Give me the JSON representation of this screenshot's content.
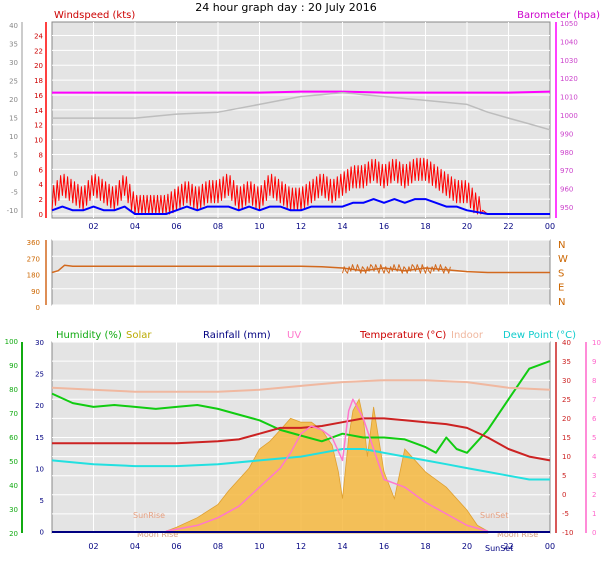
{
  "title": "24 hour graph day : 20 July 2016",
  "colors": {
    "wind": "#ff0000",
    "gust_low": "#0000ff",
    "baro": "#ff00ff",
    "baro_old": "#bdbdbd",
    "dir": "#d2691e",
    "humidity": "#11cc11",
    "solar": "#f5c060",
    "solar_fill": "#f6b93f",
    "rain": "#000080",
    "uv": "#ff77cc",
    "temp": "#cc2222",
    "indoor": "#f0b8a0",
    "dew": "#22e0e0",
    "plot_bg": "#e4e4e4",
    "grid": "#ffffff"
  },
  "chart_data": [
    {
      "type": "line",
      "name": "wind_and_pressure",
      "left_label": "Windspeed (kts)",
      "right_label": "Barometer (hpa)",
      "x_ticks": [
        "02",
        "04",
        "06",
        "08",
        "10",
        "12",
        "14",
        "16",
        "18",
        "20",
        "22",
        "00"
      ],
      "y_left_grey_ticks": [
        "40",
        "35",
        "30",
        "25",
        "20",
        "15",
        "10",
        "5",
        "0",
        "-5",
        "-10"
      ],
      "y_left_ticks": [
        "24",
        "22",
        "20",
        "18",
        "16",
        "14",
        "12",
        "10",
        "8",
        "6",
        "4",
        "2",
        "0"
      ],
      "y_left_lower_ticks": [
        "4",
        "2",
        "0"
      ],
      "y_right_ticks": [
        "1050",
        "1040",
        "1030",
        "1020",
        "1010",
        "1000",
        "990",
        "980",
        "970",
        "960",
        "950"
      ],
      "y_right_grey_ticks": [
        "1050",
        "1040",
        "1030",
        "1020",
        "1010",
        "1000",
        "990",
        "980"
      ],
      "ylim_kts": [
        0,
        25
      ],
      "ylim_hpa": [
        955,
        1050
      ],
      "series": [
        {
          "key": "baro",
          "x": [
            0,
            2,
            4,
            6,
            8,
            10,
            12,
            14,
            16,
            18,
            20,
            22,
            24
          ],
          "y": [
            1017,
            1017,
            1017,
            1017,
            1017,
            1017,
            1017.5,
            1017.5,
            1017,
            1017,
            1017,
            1017,
            1017.5
          ]
        },
        {
          "key": "baro_old",
          "x": [
            0,
            1,
            2,
            4,
            6,
            8,
            9,
            10,
            11,
            12,
            13,
            14,
            15,
            16,
            17,
            18,
            19,
            20,
            21,
            22,
            23,
            24
          ],
          "y": [
            1004,
            1004,
            1004,
            1004,
            1006,
            1007,
            1009,
            1011,
            1013,
            1015,
            1016,
            1017,
            1016,
            1015,
            1014,
            1013,
            1012,
            1011,
            1007,
            1004,
            1001,
            998
          ]
        },
        {
          "key": "wind",
          "x": [
            0,
            0.5,
            1,
            1.5,
            2,
            2.5,
            3,
            3.5,
            4,
            4.5,
            5,
            5.5,
            6,
            6.5,
            7,
            7.5,
            8,
            8.5,
            9,
            9.5,
            10,
            10.5,
            11,
            11.5,
            12,
            12.5,
            13,
            13.5,
            14,
            14.5,
            15,
            15.5,
            16,
            16.5,
            17,
            17.5,
            18,
            18.5,
            19,
            19.5,
            20,
            20.5,
            21,
            22,
            23,
            24
          ],
          "y": [
            2,
            4,
            3,
            2,
            4,
            3,
            2,
            4,
            1,
            1,
            1,
            1,
            2,
            3,
            2,
            3,
            3,
            4,
            2,
            3,
            2,
            4,
            3,
            2,
            2,
            3,
            4,
            3,
            4,
            5,
            5,
            6,
            5,
            6,
            5,
            6,
            6,
            5,
            4,
            3,
            3,
            1,
            0,
            0,
            0,
            0
          ]
        },
        {
          "key": "gust_low",
          "x": [
            0,
            0.5,
            1,
            1.5,
            2,
            2.5,
            3,
            3.5,
            4,
            4.5,
            5,
            5.5,
            6,
            6.5,
            7,
            7.5,
            8,
            8.5,
            9,
            9.5,
            10,
            10.5,
            11,
            11.5,
            12,
            12.5,
            13,
            13.5,
            14,
            14.5,
            15,
            15.5,
            16,
            16.5,
            17,
            17.5,
            18,
            18.5,
            19,
            19.5,
            20,
            21,
            22,
            23,
            24
          ],
          "y": [
            0.5,
            1,
            0.5,
            0.5,
            1,
            0.5,
            0.5,
            1,
            0,
            0,
            0,
            0,
            0.5,
            1,
            0.5,
            1,
            1,
            1,
            0.5,
            1,
            0.5,
            1,
            1,
            0.5,
            0.5,
            1,
            1,
            1,
            1,
            1.5,
            1.5,
            2,
            1.5,
            2,
            1.5,
            2,
            2,
            1.5,
            1,
            1,
            0.5,
            0,
            0,
            0,
            0
          ]
        }
      ]
    },
    {
      "type": "line",
      "name": "wind_direction",
      "y_ticks": [
        "360",
        "270",
        "180",
        "90",
        "0"
      ],
      "direction_labels": [
        "N",
        "W",
        "S",
        "E",
        "N"
      ],
      "ylim_deg": [
        0,
        360
      ],
      "series": [
        {
          "key": "dir",
          "x": [
            0,
            0.3,
            0.6,
            1,
            2,
            4,
            6,
            8,
            10,
            12,
            13,
            14,
            15,
            16,
            17,
            18,
            19,
            20,
            21,
            22,
            23,
            24
          ],
          "y": [
            180,
            190,
            220,
            215,
            215,
            215,
            215,
            215,
            215,
            215,
            212,
            205,
            190,
            205,
            190,
            205,
            195,
            185,
            180,
            180,
            180,
            180
          ]
        }
      ]
    },
    {
      "type": "line",
      "name": "humidity_temperature",
      "legend": [
        "Humidity (%)",
        "Solar",
        "Rainfall (mm)",
        "UV",
        "Temperature (°C)",
        "Indoor",
        "Dew Point (°C)"
      ],
      "y_humidity_ticks": [
        "100",
        "90",
        "80",
        "70",
        "60",
        "50",
        "40",
        "30",
        "20"
      ],
      "y_rain_ticks": [
        "30",
        "25",
        "20",
        "15",
        "10",
        "5",
        "0"
      ],
      "y_temp_ticks": [
        "40",
        "35",
        "30",
        "25",
        "20",
        "15",
        "10",
        "5",
        "0",
        "-5",
        "-10"
      ],
      "y_uv_ticks": [
        "10",
        "9",
        "8",
        "7",
        "6",
        "5",
        "4",
        "3",
        "2",
        "1",
        "0"
      ],
      "annotations": [
        "SunRise",
        "SunSet",
        "Moon Rise",
        "Moon Rise",
        "SunSet"
      ],
      "x_ticks": [
        "02",
        "04",
        "06",
        "08",
        "10",
        "12",
        "14",
        "16",
        "18",
        "20",
        "22",
        "00"
      ],
      "ylim_temp": [
        -10,
        40
      ],
      "series": [
        {
          "key": "humidity",
          "x": [
            0,
            1,
            2,
            3,
            4,
            5,
            6,
            7,
            8,
            9,
            10,
            11,
            12,
            13,
            14,
            15,
            16,
            17,
            18,
            18.5,
            19,
            19.5,
            20,
            21,
            22,
            23,
            24
          ],
          "y": [
            26.5,
            24,
            23,
            23.5,
            23,
            22.5,
            23,
            23.5,
            22.5,
            21,
            19.5,
            17,
            15.5,
            14,
            16,
            15,
            15,
            14.5,
            12.5,
            11,
            15,
            12,
            11,
            17,
            25,
            33,
            35
          ]
        },
        {
          "key": "temp",
          "x": [
            0,
            2,
            4,
            6,
            8,
            9,
            10,
            11,
            12,
            13,
            14,
            15,
            16,
            17,
            18,
            19,
            20,
            21,
            22,
            23,
            24
          ],
          "y": 13.5,
          "points": [
            13.5,
            13.5,
            13.5,
            13.5,
            14,
            14.5,
            16,
            17.5,
            17.5,
            18,
            19,
            20,
            20,
            19.5,
            19,
            18.5,
            17.5,
            15,
            12,
            10,
            9
          ]
        },
        {
          "key": "indoor",
          "x": [
            0,
            2,
            4,
            6,
            8,
            10,
            12,
            14,
            16,
            18,
            20,
            22,
            24
          ],
          "y": [
            28,
            27.5,
            27,
            27,
            27,
            27.5,
            28.5,
            29.5,
            30,
            30,
            29.5,
            28,
            27.5
          ]
        },
        {
          "key": "dew",
          "x": [
            0,
            2,
            4,
            6,
            8,
            10,
            11,
            12,
            13,
            14,
            15,
            16,
            17,
            18,
            19,
            20,
            21,
            22,
            23,
            24
          ],
          "y": [
            9,
            8,
            7.5,
            7.5,
            8,
            9,
            9.5,
            10,
            11,
            12,
            12,
            11,
            10,
            9,
            8,
            7,
            6,
            5,
            4,
            4
          ]
        },
        {
          "key": "solar",
          "x": [
            5.5,
            6,
            7,
            8,
            8.5,
            9,
            9.5,
            10,
            10.5,
            11,
            11.5,
            12,
            12.5,
            13,
            13.5,
            13.8,
            14,
            14.3,
            14.5,
            14.8,
            15,
            15.2,
            15.5,
            16,
            16.5,
            17,
            18,
            19,
            20,
            20.5,
            21
          ],
          "y": [
            -9.5,
            -8.5,
            -6,
            -2.5,
            1,
            4,
            7,
            12,
            14,
            17,
            20,
            19,
            19,
            17,
            13,
            6,
            -1,
            15,
            22,
            25,
            20,
            10,
            23,
            6,
            -1,
            12,
            6,
            2,
            -4,
            -8,
            -9.5
          ]
        },
        {
          "key": "uv",
          "x": [
            5.5,
            6,
            7,
            8,
            9,
            10,
            11,
            11.5,
            12,
            12.5,
            13,
            13.5,
            14,
            14.3,
            14.5,
            15,
            15.5,
            16,
            17,
            18,
            19,
            20,
            21
          ],
          "y": [
            -9.5,
            -9,
            -8,
            -6,
            -3,
            2,
            7,
            11,
            16,
            18,
            17,
            15,
            9,
            22,
            25,
            20,
            12,
            4,
            2,
            -2,
            -5,
            -8,
            -9.5
          ]
        }
      ]
    }
  ]
}
